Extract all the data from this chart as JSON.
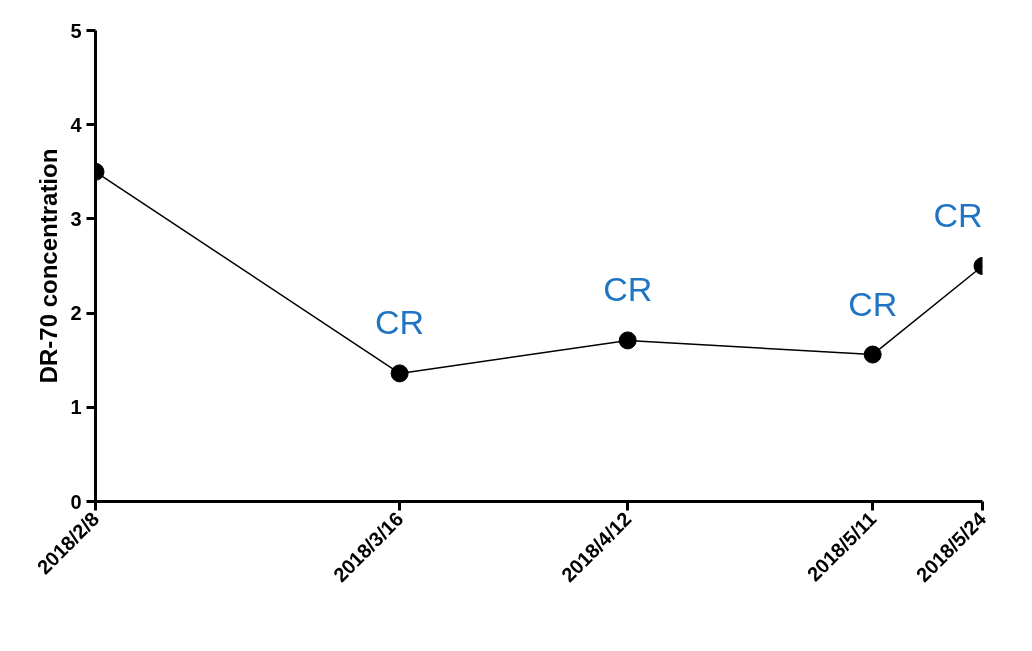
{
  "chart_data": {
    "type": "line",
    "ylabel": "DR-70 concentration",
    "x": [
      "2018-02-08",
      "2018-03-16",
      "2018-04-12",
      "2018-05-11",
      "2018-05-24"
    ],
    "series": [
      {
        "color": "#000000",
        "values": [
          3.5,
          1.36,
          1.71,
          1.56,
          2.5
        ]
      }
    ],
    "xlim": [
      "2018-02-08",
      "2018-05-24"
    ],
    "xticks": [
      {
        "value": "2018-02-08",
        "label": "2018/2/8"
      },
      {
        "value": "2018-03-16",
        "label": "2018/3/16"
      },
      {
        "value": "2018-04-12",
        "label": "2018/4/12"
      },
      {
        "value": "2018-05-11",
        "label": "2018/5/11"
      },
      {
        "value": "2018-05-24",
        "label": "2018/5/24"
      }
    ],
    "ylim": [
      0,
      5
    ],
    "yticks": [
      0,
      1,
      2,
      3,
      4,
      5
    ],
    "grid": false,
    "marker": "circle",
    "line_style": "solid",
    "annotations": [
      {
        "text": "CR",
        "x": "2018-03-16",
        "y": 1.36
      },
      {
        "text": "CR",
        "x": "2018-04-12",
        "y": 1.71
      },
      {
        "text": "CR",
        "x": "2018-05-11",
        "y": 1.56
      },
      {
        "text": "CR",
        "x": "2018-05-24",
        "y": 2.5
      }
    ]
  }
}
